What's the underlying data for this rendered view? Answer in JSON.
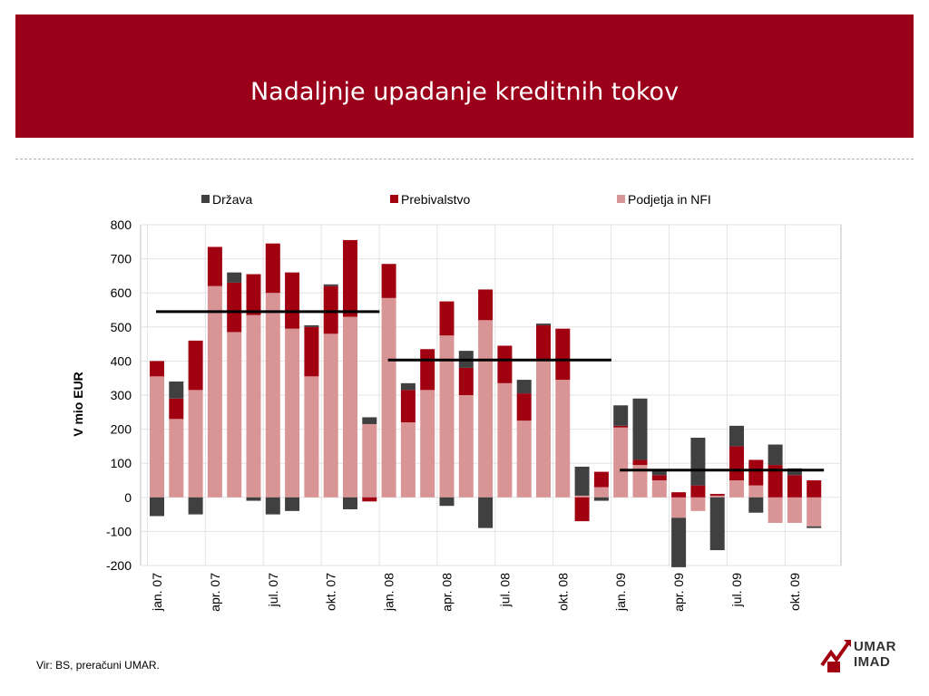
{
  "page": {
    "title": "Nadaljnje upadanje kreditnih tokov"
  },
  "source_note": "Vir: BS, preračuni UMAR.",
  "logo": {
    "line1": "UMAR",
    "line2": "IMAD"
  },
  "colors": {
    "banner": "#9a0019",
    "drzava": "#404040",
    "prebivalstvo": "#a00010",
    "podjetja": "#d99595"
  },
  "chart_data": {
    "type": "bar",
    "stacked": true,
    "ylabel": "V mio EUR",
    "xlabel": "",
    "ylim": [
      -200,
      800
    ],
    "yticks": [
      800,
      700,
      600,
      500,
      400,
      300,
      200,
      100,
      0,
      -100,
      -200
    ],
    "grid": true,
    "legend_position": "top",
    "categories": [
      "jan. 07",
      "feb. 07",
      "mar. 07",
      "apr. 07",
      "maj 07",
      "jun. 07",
      "jul. 07",
      "avg. 07",
      "sep. 07",
      "okt. 07",
      "nov. 07",
      "dec. 07",
      "jan. 08",
      "feb. 08",
      "mar. 08",
      "apr. 08",
      "maj 08",
      "jun. 08",
      "jul. 08",
      "avg. 08",
      "sep. 08",
      "okt. 08",
      "nov. 08",
      "dec. 08",
      "jan. 09",
      "feb. 09",
      "mar. 09",
      "apr. 09",
      "maj 09",
      "jun. 09",
      "jul. 09",
      "avg. 09",
      "sep. 09",
      "okt. 09",
      "nov. 09"
    ],
    "xtick_labels": [
      "jan. 07",
      "apr. 07",
      "jul. 07",
      "okt. 07",
      "jan. 08",
      "apr. 08",
      "jul. 08",
      "okt. 08",
      "jan. 09",
      "apr. 09",
      "jul. 09",
      "okt. 09"
    ],
    "series": [
      {
        "name": "Država",
        "color": "#404040",
        "values": [
          -55,
          50,
          -50,
          0,
          30,
          -10,
          -50,
          -40,
          5,
          5,
          -35,
          20,
          0,
          20,
          0,
          -25,
          50,
          -90,
          0,
          40,
          5,
          0,
          85,
          -10,
          60,
          180,
          15,
          -145,
          140,
          -155,
          60,
          -45,
          60,
          20,
          -5
        ]
      },
      {
        "name": "Prebivalstvo",
        "color": "#a00010",
        "values": [
          45,
          60,
          145,
          115,
          145,
          120,
          145,
          165,
          145,
          140,
          225,
          -12,
          100,
          95,
          120,
          100,
          80,
          90,
          110,
          80,
          100,
          150,
          -70,
          45,
          5,
          15,
          15,
          15,
          35,
          5,
          100,
          75,
          95,
          65,
          50
        ]
      },
      {
        "name": "Podjetja in NFI",
        "color": "#d99595",
        "values": [
          355,
          230,
          315,
          620,
          485,
          535,
          600,
          495,
          355,
          480,
          530,
          215,
          585,
          220,
          315,
          475,
          300,
          520,
          335,
          225,
          405,
          345,
          5,
          30,
          205,
          95,
          50,
          -60,
          -40,
          5,
          50,
          35,
          -75,
          -75,
          -85
        ]
      }
    ],
    "average_lines": [
      {
        "from": "jan. 07",
        "to": "dec. 07",
        "value": 545
      },
      {
        "from": "jan. 08",
        "to": "dec. 08",
        "value": 403
      },
      {
        "from": "jan. 09",
        "to": "nov. 09",
        "value": 80
      }
    ]
  }
}
